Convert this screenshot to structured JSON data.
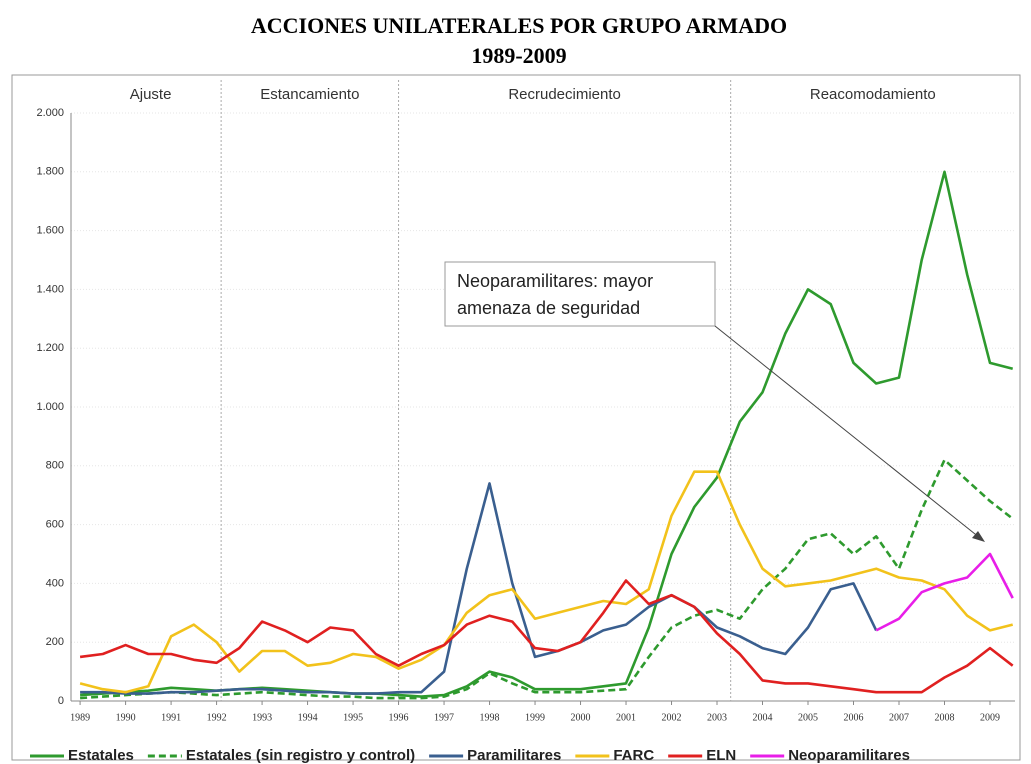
{
  "chart_data": {
    "type": "line",
    "title": "ACCIONES UNILATERALES POR GRUPO ARMADO",
    "subtitle": "1989-2009",
    "x": [
      1989,
      1989.5,
      1990,
      1990.5,
      1991,
      1991.5,
      1992,
      1992.5,
      1993,
      1993.5,
      1994,
      1994.5,
      1995,
      1995.5,
      1996,
      1996.5,
      1997,
      1997.5,
      1998,
      1998.5,
      1999,
      1999.5,
      2000,
      2000.5,
      2001,
      2001.5,
      2002,
      2002.5,
      2003,
      2003.5,
      2004,
      2004.5,
      2005,
      2005.5,
      2006,
      2006.5,
      2007,
      2007.5,
      2008,
      2008.5,
      2009,
      2009.5
    ],
    "series": [
      {
        "name": "Estatales",
        "color": "#2e9a2e",
        "dash": false,
        "values": [
          20,
          25,
          30,
          35,
          45,
          40,
          35,
          40,
          45,
          40,
          35,
          30,
          25,
          25,
          20,
          15,
          20,
          50,
          100,
          80,
          40,
          40,
          40,
          50,
          60,
          250,
          500,
          660,
          760,
          950,
          1050,
          1250,
          1400,
          1350,
          1150,
          1080,
          1100,
          1500,
          1800,
          1450,
          1150,
          1130
        ]
      },
      {
        "name": "Estatales (sin registro y control)",
        "color": "#2e9a2e",
        "dash": true,
        "values": [
          10,
          15,
          20,
          25,
          30,
          25,
          20,
          25,
          30,
          25,
          20,
          15,
          15,
          10,
          10,
          10,
          15,
          40,
          95,
          60,
          30,
          30,
          30,
          35,
          40,
          150,
          250,
          290,
          310,
          280,
          380,
          450,
          550,
          570,
          500,
          560,
          450,
          650,
          820,
          750,
          680,
          620
        ]
      },
      {
        "name": "Paramilitares",
        "color": "#3a5f8f",
        "dash": false,
        "values": [
          30,
          30,
          25,
          25,
          30,
          30,
          35,
          40,
          40,
          35,
          30,
          30,
          25,
          25,
          30,
          30,
          100,
          450,
          740,
          400,
          150,
          170,
          200,
          240,
          260,
          320,
          360,
          320,
          250,
          220,
          180,
          160,
          250,
          380,
          400,
          240,
          null,
          null,
          null,
          null,
          null,
          null
        ]
      },
      {
        "name": "FARC",
        "color": "#f2c21b",
        "dash": false,
        "values": [
          60,
          40,
          30,
          50,
          220,
          260,
          200,
          100,
          170,
          170,
          120,
          130,
          160,
          150,
          110,
          140,
          190,
          300,
          360,
          380,
          280,
          300,
          320,
          340,
          330,
          380,
          630,
          780,
          780,
          600,
          450,
          390,
          400,
          410,
          430,
          450,
          420,
          410,
          380,
          290,
          240,
          260
        ]
      },
      {
        "name": "ELN",
        "color": "#e02020",
        "dash": false,
        "values": [
          150,
          160,
          190,
          160,
          160,
          140,
          130,
          180,
          270,
          240,
          200,
          250,
          240,
          160,
          120,
          160,
          190,
          260,
          290,
          270,
          180,
          170,
          200,
          300,
          410,
          330,
          360,
          320,
          230,
          160,
          70,
          60,
          60,
          50,
          40,
          30,
          30,
          30,
          80,
          120,
          180,
          120
        ]
      },
      {
        "name": "Neoparamilitares",
        "color": "#e81ee8",
        "dash": false,
        "values": [
          null,
          null,
          null,
          null,
          null,
          null,
          null,
          null,
          null,
          null,
          null,
          null,
          null,
          null,
          null,
          null,
          null,
          null,
          null,
          null,
          null,
          null,
          null,
          null,
          null,
          null,
          null,
          null,
          null,
          null,
          null,
          null,
          null,
          null,
          null,
          240,
          280,
          370,
          400,
          420,
          500,
          350
        ]
      }
    ],
    "xlim": [
      1988.8,
      2009.55
    ],
    "xticks": [
      1989,
      1990,
      1991,
      1992,
      1993,
      1994,
      1995,
      1996,
      1997,
      1998,
      1999,
      2000,
      2001,
      2002,
      2003,
      2004,
      2005,
      2006,
      2007,
      2008,
      2009
    ],
    "ylim": [
      0,
      2000
    ],
    "yticks": [
      0,
      200,
      400,
      600,
      800,
      {
        "value": 1000,
        "label": "1.000"
      },
      {
        "value": 1200,
        "label": "1.200"
      },
      {
        "value": 1400,
        "label": "1.400"
      },
      {
        "value": 1600,
        "label": "1.600"
      },
      {
        "value": 1800,
        "label": "1.800"
      },
      {
        "value": 2000,
        "label": "2.000"
      }
    ],
    "grid": true,
    "period_dividers": [
      1992.1,
      1996.0,
      2003.3
    ],
    "periods": [
      "Ajuste",
      "Estancamiento",
      "Recrudecimiento",
      "Reacomodamiento"
    ],
    "annotation": [
      "Neoparamilitares: mayor",
      "amenaza de seguridad"
    ],
    "legend": "bottom"
  }
}
